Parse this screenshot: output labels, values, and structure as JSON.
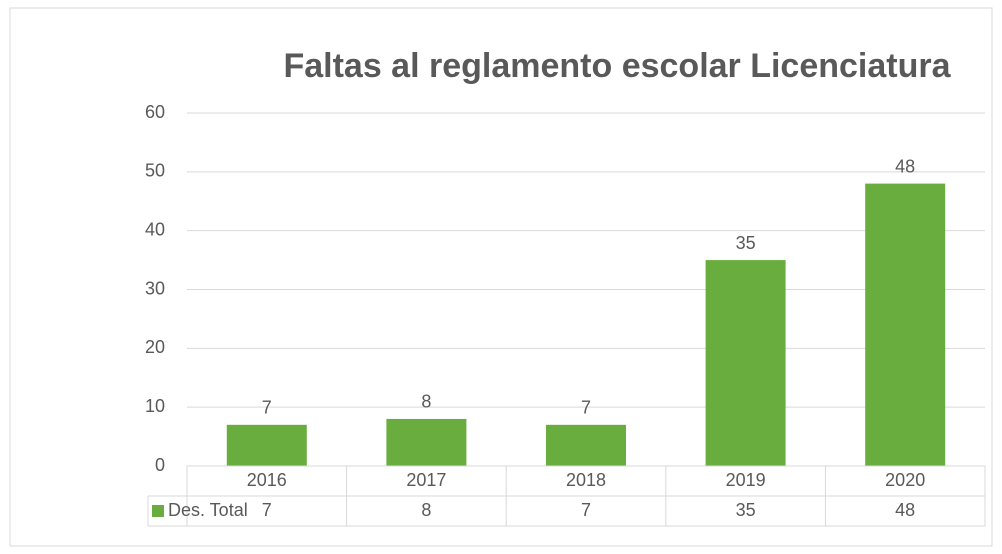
{
  "chart_data": {
    "type": "bar",
    "title": "Faltas al reglamento escolar Licenciatura",
    "categories": [
      "2016",
      "2017",
      "2018",
      "2019",
      "2020"
    ],
    "series": [
      {
        "name": "Des. Total",
        "color": "#6aad3f",
        "values": [
          7,
          8,
          7,
          35,
          48
        ]
      }
    ],
    "ylim": [
      0,
      60
    ],
    "yticks": [
      0,
      10,
      20,
      30,
      40,
      50,
      60
    ],
    "grid": true,
    "data_labels": true,
    "data_table": true
  }
}
